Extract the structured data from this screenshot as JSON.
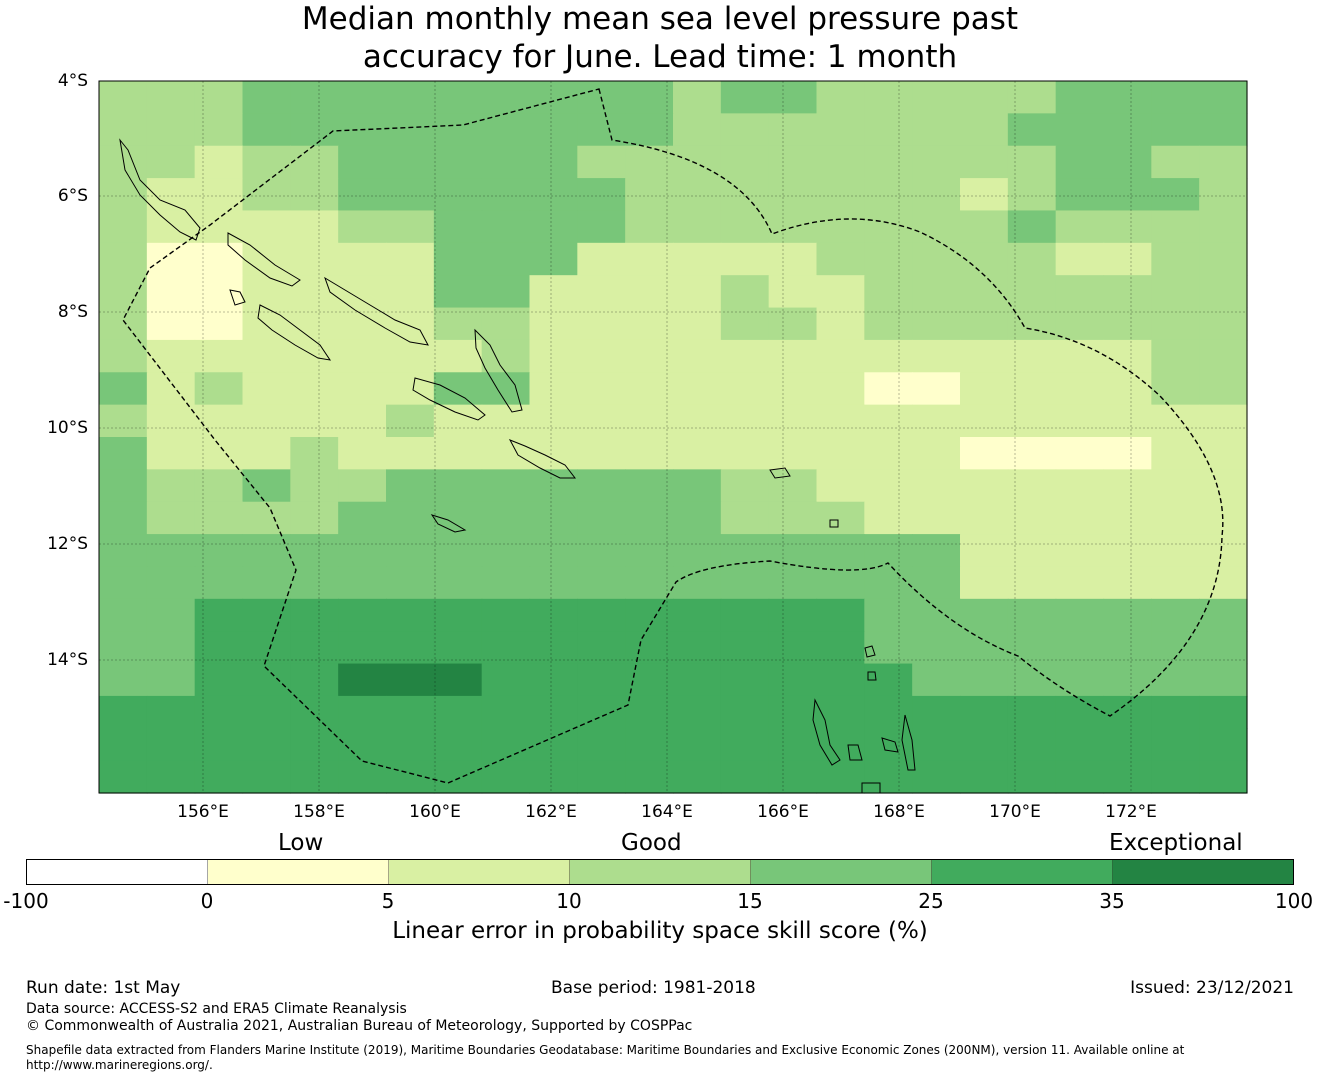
{
  "title": {
    "line1": "Median monthly mean sea level pressure past",
    "line2": "accuracy for June. Lead time: 1 month"
  },
  "map": {
    "lat_labels": [
      "4°S",
      "6°S",
      "8°S",
      "10°S",
      "12°S",
      "14°S"
    ],
    "lon_labels": [
      "156°E",
      "158°E",
      "160°E",
      "162°E",
      "164°E",
      "166°E",
      "168°E",
      "170°E",
      "172°E"
    ],
    "grid": true,
    "region_boundary": "dashed EEZ outline"
  },
  "colorbar": {
    "categories": [
      "Low",
      "Good",
      "Exceptional"
    ],
    "ticks": [
      "-100",
      "0",
      "5",
      "10",
      "15",
      "25",
      "35",
      "100"
    ],
    "colors": [
      "#ffffff",
      "#ffffcc",
      "#d9f0a3",
      "#addd8e",
      "#78c679",
      "#41ab5d",
      "#238443"
    ],
    "label": "Linear error in probability space skill score (%)"
  },
  "footer": {
    "run_date": "Run date: 1st May",
    "base_period": "Base period: 1981-2018",
    "issued": "Issued: 23/12/2021",
    "data_source": "Data source: ACCESS-S2 and ERA5 Climate Reanalysis",
    "copyright": "© Commonwealth of Australia 2021, Australian Bureau of Meteorology, Supported by COSPPac",
    "shapefile_line1": "Shapefile data extracted from Flanders Marine Institute (2019), Maritime Boundaries Geodatabase: Maritime Boundaries and Exclusive Economic Zones (200NM), version 11. Available online at",
    "shapefile_line2": "http://www.marineregions.org/."
  }
}
